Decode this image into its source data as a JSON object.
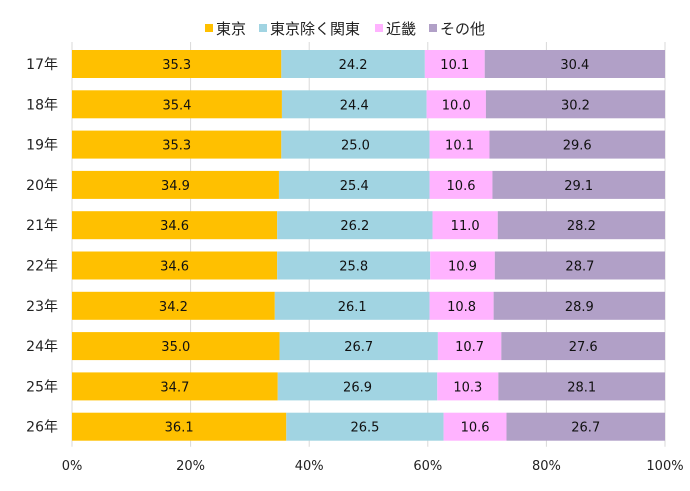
{
  "chart_data": {
    "type": "bar",
    "orientation": "horizontal",
    "stacked": "percent",
    "categories": [
      "17年",
      "18年",
      "19年",
      "20年",
      "21年",
      "22年",
      "23年",
      "24年",
      "25年",
      "26年"
    ],
    "series": [
      {
        "name": "東京",
        "color": "#FFC000",
        "values": [
          35.3,
          35.4,
          35.3,
          34.9,
          34.6,
          34.6,
          34.2,
          35.0,
          34.7,
          36.1
        ]
      },
      {
        "name": "東京除く関東",
        "color": "#A1D4E2",
        "values": [
          24.2,
          24.4,
          25.0,
          25.4,
          26.2,
          25.8,
          26.1,
          26.7,
          26.9,
          26.5
        ]
      },
      {
        "name": "近畿",
        "color": "#FFB3FF",
        "values": [
          10.1,
          10.0,
          10.1,
          10.6,
          11.0,
          10.9,
          10.8,
          10.7,
          10.3,
          10.6
        ]
      },
      {
        "name": "その他",
        "color": "#B1A0C7",
        "values": [
          30.4,
          30.2,
          29.6,
          29.1,
          28.2,
          28.7,
          28.9,
          27.6,
          28.1,
          26.7
        ]
      }
    ],
    "xticks": [
      "0%",
      "20%",
      "40%",
      "60%",
      "80%",
      "100%"
    ],
    "xlim": [
      0,
      100
    ],
    "grid": true,
    "legend": "top-center",
    "title": "",
    "xlabel": "",
    "ylabel": ""
  }
}
